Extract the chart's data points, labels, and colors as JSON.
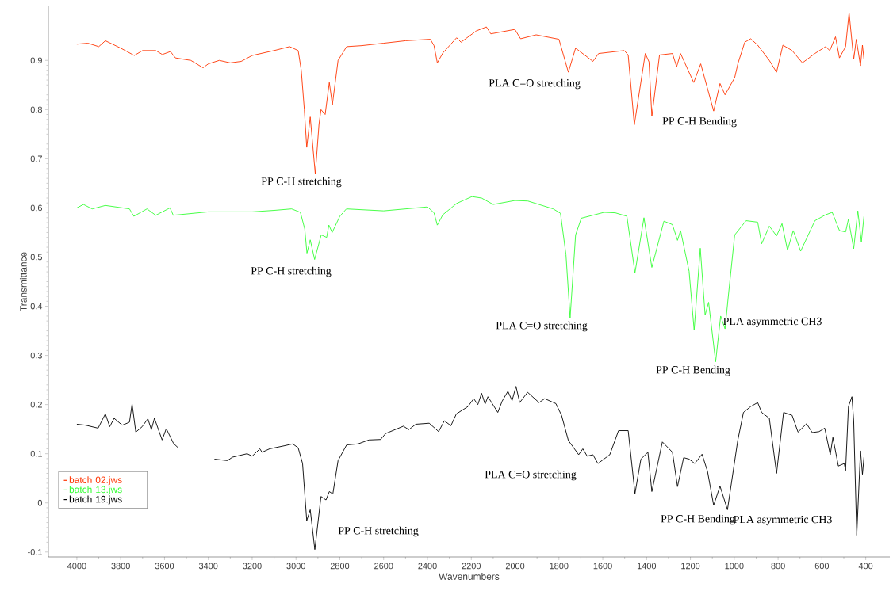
{
  "chart_data": {
    "type": "line",
    "xlabel": "Wavenumbers",
    "ylabel": "Transmittance",
    "xlim": [
      4130,
      290
    ],
    "ylim": [
      -0.11,
      1.01
    ],
    "xticks": [
      4000,
      3800,
      3600,
      3400,
      3200,
      3000,
      2800,
      2600,
      2400,
      2200,
      2000,
      1800,
      1600,
      1400,
      1200,
      1000,
      800,
      600,
      400
    ],
    "yticks": [
      -0.1,
      0,
      0.1,
      0.2,
      0.3,
      0.4,
      0.5,
      0.6,
      0.7,
      0.8,
      0.9
    ],
    "legend": "bottom left",
    "annotations": [
      "PP C-H stretching",
      "PLA C=O stretching",
      "PP C-H Bending",
      "PP C-H stretching",
      "PLA C=O stretching",
      "PLA asymmetric CH3",
      "PP C-H Bending",
      "PP C-H stretching",
      "PLA C=O stretching",
      "PLA asymmetric CH3",
      "PP C-H Bending"
    ],
    "series": [
      {
        "name": "batch 02.jws",
        "color": "#ff3300",
        "x": [
          4000,
          3950,
          3900,
          3870,
          3800,
          3738,
          3700,
          3640,
          3610,
          3573,
          3550,
          3480,
          3424,
          3400,
          3350,
          3300,
          3250,
          3200,
          3100,
          3029,
          2990,
          2976,
          2962,
          2951,
          2935,
          2912,
          2895,
          2886,
          2867,
          2848,
          2834,
          2808,
          2769,
          2700,
          2600,
          2500,
          2387,
          2370,
          2355,
          2330,
          2267,
          2247,
          2177,
          2131,
          2111,
          2001,
          1975,
          1904,
          1800,
          1757,
          1724,
          1645,
          1619,
          1502,
          1484,
          1456,
          1406,
          1389,
          1376,
          1341,
          1282,
          1263,
          1245,
          1185,
          1153,
          1094,
          1065,
          1042,
          998,
          983,
          952,
          925,
          893,
          840,
          807,
          778,
          736,
          689,
          632,
          583,
          564,
          538,
          520,
          492,
          476,
          455,
          443,
          424,
          415,
          408
        ],
        "values": [
          0.933,
          0.935,
          0.928,
          0.94,
          0.925,
          0.91,
          0.92,
          0.92,
          0.912,
          0.918,
          0.905,
          0.9,
          0.885,
          0.893,
          0.9,
          0.895,
          0.898,
          0.91,
          0.92,
          0.928,
          0.92,
          0.88,
          0.8,
          0.723,
          0.785,
          0.669,
          0.77,
          0.8,
          0.79,
          0.855,
          0.81,
          0.9,
          0.928,
          0.93,
          0.935,
          0.94,
          0.943,
          0.93,
          0.895,
          0.915,
          0.946,
          0.937,
          0.96,
          0.968,
          0.954,
          0.963,
          0.944,
          0.952,
          0.943,
          0.876,
          0.925,
          0.898,
          0.914,
          0.92,
          0.911,
          0.769,
          0.914,
          0.897,
          0.786,
          0.911,
          0.914,
          0.887,
          0.914,
          0.855,
          0.893,
          0.797,
          0.853,
          0.83,
          0.865,
          0.894,
          0.937,
          0.944,
          0.931,
          0.9,
          0.876,
          0.931,
          0.92,
          0.895,
          0.914,
          0.928,
          0.92,
          0.948,
          0.905,
          0.928,
          0.997,
          0.902,
          0.943,
          0.889,
          0.931,
          0.902
        ]
      },
      {
        "name": "batch 13.jws",
        "color": "#33ff33",
        "x": [
          4000,
          3970,
          3930,
          3870,
          3760,
          3740,
          3680,
          3640,
          3575,
          3560,
          3400,
          3200,
          3100,
          3020,
          2980,
          2960,
          2950,
          2935,
          2915,
          2885,
          2860,
          2850,
          2835,
          2800,
          2770,
          2600,
          2400,
          2370,
          2355,
          2330,
          2267,
          2197,
          2153,
          2100,
          2001,
          1942,
          1826,
          1793,
          1768,
          1749,
          1724,
          1698,
          1594,
          1543,
          1490,
          1453,
          1412,
          1376,
          1321,
          1282,
          1259,
          1245,
          1206,
          1183,
          1155,
          1133,
          1117,
          1085,
          1062,
          1042,
          1026,
          998,
          946,
          893,
          875,
          840,
          807,
          782,
          757,
          731,
          697,
          632,
          583,
          553,
          520,
          492,
          479,
          455,
          436,
          420,
          408
        ],
        "values": [
          0.6,
          0.607,
          0.598,
          0.605,
          0.598,
          0.583,
          0.598,
          0.585,
          0.6,
          0.585,
          0.592,
          0.592,
          0.595,
          0.598,
          0.591,
          0.557,
          0.508,
          0.535,
          0.495,
          0.545,
          0.54,
          0.565,
          0.55,
          0.583,
          0.598,
          0.594,
          0.602,
          0.59,
          0.565,
          0.586,
          0.609,
          0.623,
          0.62,
          0.607,
          0.615,
          0.614,
          0.598,
          0.589,
          0.505,
          0.376,
          0.545,
          0.579,
          0.591,
          0.59,
          0.583,
          0.468,
          0.58,
          0.479,
          0.573,
          0.566,
          0.534,
          0.554,
          0.471,
          0.351,
          0.518,
          0.382,
          0.408,
          0.287,
          0.38,
          0.354,
          0.425,
          0.545,
          0.574,
          0.571,
          0.527,
          0.563,
          0.543,
          0.568,
          0.514,
          0.554,
          0.512,
          0.574,
          0.586,
          0.591,
          0.554,
          0.551,
          0.577,
          0.517,
          0.594,
          0.531,
          0.583
        ]
      },
      {
        "name": "batch 19.jws",
        "color": "#000000",
        "x": [
          4000,
          3960,
          3903,
          3870,
          3850,
          3830,
          3793,
          3760,
          3748,
          3731,
          3702,
          3676,
          3660,
          3646,
          3611,
          3592,
          3559,
          3540,
          3460,
          3372,
          3313,
          3290,
          3223,
          3200,
          3165,
          3155,
          3120,
          3055,
          3015,
          2990,
          2970,
          2951,
          2935,
          2914,
          2886,
          2863,
          2848,
          2832,
          2808,
          2769,
          2717,
          2667,
          2614,
          2591,
          2510,
          2485,
          2453,
          2392,
          2349,
          2323,
          2293,
          2268,
          2215,
          2189,
          2170,
          2153,
          2137,
          2124,
          2079,
          2059,
          2033,
          2014,
          1996,
          1979,
          1943,
          1891,
          1865,
          1814,
          1788,
          1757,
          1710,
          1691,
          1671,
          1645,
          1622,
          1568,
          1528,
          1484,
          1453,
          1426,
          1394,
          1376,
          1328,
          1282,
          1259,
          1231,
          1206,
          1180,
          1147,
          1122,
          1094,
          1065,
          1031,
          984,
          958,
          925,
          893,
          875,
          840,
          807,
          775,
          736,
          709,
          670,
          644,
          613,
          587,
          562,
          550,
          525,
          498,
          492,
          479,
          463,
          455,
          441,
          424,
          415,
          408
        ],
        "values": [
          0.16,
          0.158,
          0.152,
          0.181,
          0.155,
          0.172,
          0.158,
          0.164,
          0.201,
          0.144,
          0.155,
          0.171,
          0.149,
          0.172,
          0.128,
          0.151,
          0.121,
          0.113,
          null,
          0.089,
          0.086,
          0.093,
          0.1,
          0.095,
          0.11,
          0.103,
          0.11,
          0.116,
          0.12,
          0.112,
          0.08,
          -0.036,
          -0.014,
          -0.095,
          0.013,
          0.006,
          0.023,
          0.018,
          0.086,
          0.118,
          0.12,
          0.128,
          0.129,
          0.141,
          0.156,
          0.149,
          0.16,
          0.162,
          0.145,
          0.167,
          0.157,
          0.181,
          0.196,
          0.212,
          0.2,
          0.223,
          0.201,
          0.216,
          0.184,
          0.207,
          0.227,
          0.208,
          0.237,
          0.204,
          0.225,
          0.204,
          0.212,
          0.202,
          0.178,
          0.127,
          0.098,
          0.11,
          0.095,
          0.098,
          0.08,
          0.098,
          0.147,
          0.147,
          0.019,
          0.089,
          0.103,
          0.023,
          0.124,
          0.103,
          0.033,
          0.092,
          0.089,
          0.08,
          0.099,
          0.064,
          -0.005,
          0.034,
          -0.014,
          0.127,
          0.184,
          0.196,
          0.204,
          0.184,
          0.172,
          0.06,
          0.184,
          0.178,
          0.144,
          0.161,
          0.143,
          0.145,
          0.152,
          0.098,
          0.133,
          0.075,
          0.08,
          0.066,
          0.196,
          0.216,
          0.167,
          -0.066,
          0.106,
          0.058,
          0.093
        ]
      }
    ]
  }
}
